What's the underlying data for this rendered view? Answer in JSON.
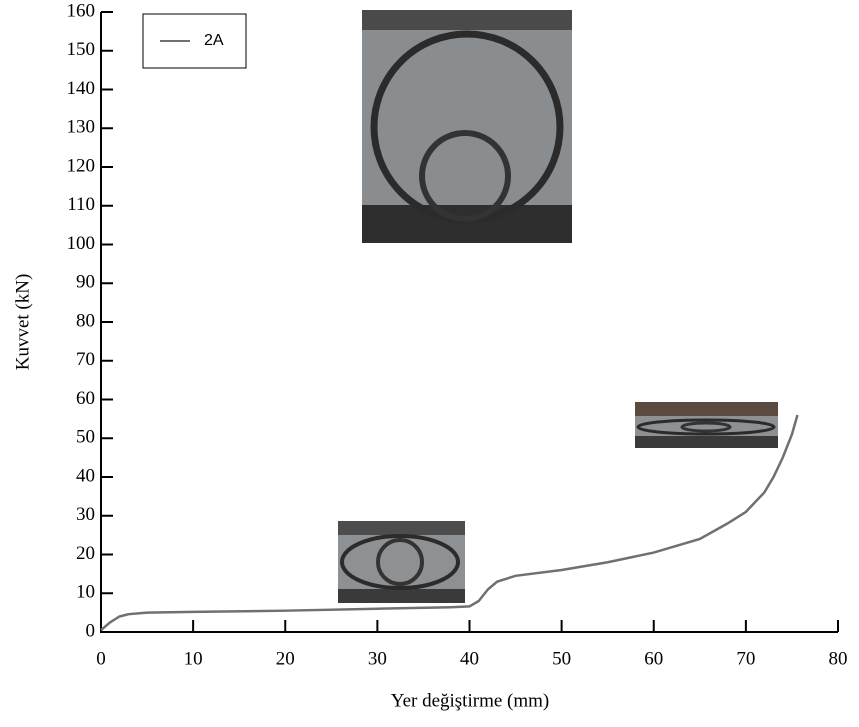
{
  "chart_data": {
    "type": "line",
    "xlabel": "Yer değiştirme (mm)",
    "ylabel": "Kuvvet (kN)",
    "x": [
      0,
      1,
      2,
      3,
      5,
      10,
      20,
      30,
      38,
      40,
      41,
      42,
      43,
      45,
      50,
      55,
      60,
      65,
      68,
      70,
      72,
      73,
      74,
      75,
      75.6
    ],
    "series": [
      {
        "name": "2A",
        "color": "#707070",
        "values": [
          0.5,
          2.5,
          4,
          4.6,
          5,
          5.2,
          5.5,
          6,
          6.4,
          6.6,
          8,
          11,
          13,
          14.5,
          16,
          18,
          20.5,
          24,
          28,
          31,
          36,
          40,
          45,
          51,
          56
        ]
      }
    ],
    "xlim": [
      0,
      80
    ],
    "xticks": [
      0,
      10,
      20,
      30,
      40,
      50,
      60,
      70,
      80
    ],
    "ylim": [
      0,
      160
    ],
    "yticks": [
      0,
      10,
      20,
      30,
      40,
      50,
      60,
      70,
      80,
      90,
      100,
      110,
      120,
      130,
      140,
      150,
      160
    ],
    "legend": "upper left"
  }
}
